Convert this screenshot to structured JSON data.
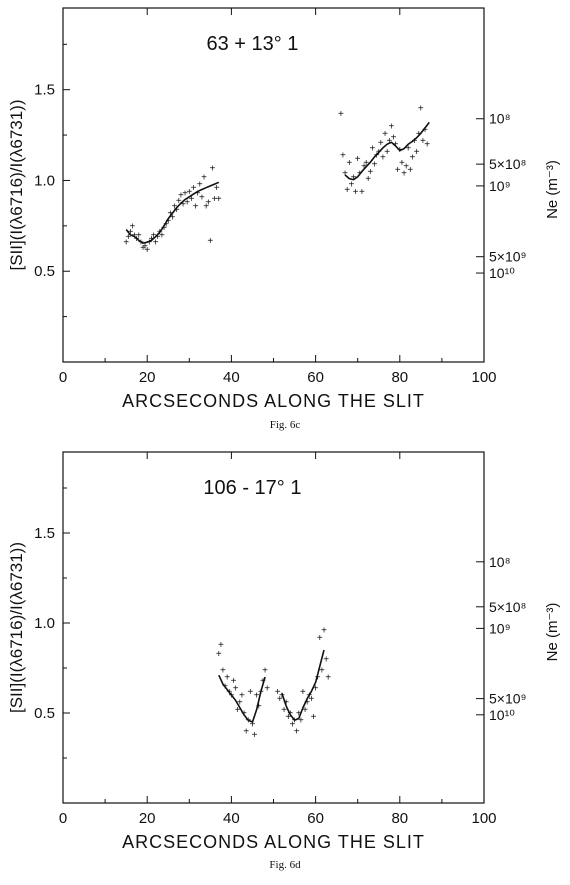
{
  "chart_data": [
    {
      "type": "scatter",
      "title": "63 + 13° 1",
      "caption": "Fig. 6c",
      "xlabel": "ARCSECONDS ALONG THE SLIT",
      "ylabel": "[SII](I(λ6716)/I(λ6731))",
      "y2label": "Ne (m⁻³)",
      "xlim": [
        0,
        100
      ],
      "ylim": [
        0,
        1.95
      ],
      "xticks": [
        "0",
        "20",
        "40",
        "60",
        "80",
        "100"
      ],
      "yticks": [
        "0.5",
        "1.0",
        "1.5"
      ],
      "y2ticks": [
        {
          "label": "10⁸",
          "y": 1.34
        },
        {
          "label": "5×10⁸",
          "y": 1.09
        },
        {
          "label": "10⁹",
          "y": 0.97
        },
        {
          "label": "5×10⁹",
          "y": 0.58
        },
        {
          "label": "10¹⁰",
          "y": 0.49
        }
      ],
      "grid": false,
      "series": [
        {
          "marker": "+",
          "points": [
            [
              15,
              0.66
            ],
            [
              15.5,
              0.69
            ],
            [
              16,
              0.72
            ],
            [
              16.5,
              0.75
            ],
            [
              17,
              0.7
            ],
            [
              17.5,
              0.68
            ],
            [
              18,
              0.7
            ],
            [
              18.5,
              0.66
            ],
            [
              19,
              0.63
            ],
            [
              19.5,
              0.64
            ],
            [
              20,
              0.62
            ],
            [
              20.5,
              0.66
            ],
            [
              21,
              0.68
            ],
            [
              21.5,
              0.7
            ],
            [
              22,
              0.66
            ],
            [
              22.5,
              0.69
            ],
            [
              23,
              0.72
            ],
            [
              23.5,
              0.7
            ],
            [
              24,
              0.74
            ],
            [
              24.5,
              0.76
            ],
            [
              25,
              0.78
            ],
            [
              25.5,
              0.82
            ],
            [
              26,
              0.8
            ],
            [
              26.5,
              0.86
            ],
            [
              27,
              0.84
            ],
            [
              27.5,
              0.89
            ],
            [
              28,
              0.92
            ],
            [
              28.5,
              0.87
            ],
            [
              29,
              0.93
            ],
            [
              29.5,
              0.88
            ],
            [
              30,
              0.94
            ],
            [
              30.5,
              0.9
            ],
            [
              31,
              0.96
            ],
            [
              31.5,
              0.86
            ],
            [
              32,
              0.93
            ],
            [
              32.5,
              0.98
            ],
            [
              33,
              0.91
            ],
            [
              33.5,
              1.02
            ],
            [
              34,
              0.86
            ],
            [
              34.5,
              0.88
            ],
            [
              35,
              0.67
            ],
            [
              35.5,
              1.07
            ],
            [
              36,
              0.9
            ],
            [
              36.5,
              0.96
            ],
            [
              37,
              0.9
            ],
            [
              66,
              1.37
            ],
            [
              66.5,
              1.14
            ],
            [
              67,
              1.04
            ],
            [
              67.5,
              0.95
            ],
            [
              68,
              1.1
            ],
            [
              68.5,
              0.98
            ],
            [
              69,
              1.02
            ],
            [
              69.5,
              0.94
            ],
            [
              70,
              1.12
            ],
            [
              70.5,
              1.04
            ],
            [
              71,
              0.94
            ],
            [
              71.5,
              1.08
            ],
            [
              72,
              1.1
            ],
            [
              72.5,
              1.01
            ],
            [
              73,
              1.05
            ],
            [
              73.5,
              1.18
            ],
            [
              74,
              1.09
            ],
            [
              74.5,
              1.14
            ],
            [
              75,
              1.16
            ],
            [
              75.5,
              1.21
            ],
            [
              76,
              1.13
            ],
            [
              76.5,
              1.26
            ],
            [
              77,
              1.16
            ],
            [
              77.5,
              1.22
            ],
            [
              78,
              1.3
            ],
            [
              78.5,
              1.24
            ],
            [
              79,
              1.2
            ],
            [
              79.5,
              1.06
            ],
            [
              80,
              1.17
            ],
            [
              80.5,
              1.1
            ],
            [
              81,
              1.04
            ],
            [
              81.5,
              1.08
            ],
            [
              82,
              1.18
            ],
            [
              82.5,
              1.06
            ],
            [
              83,
              1.13
            ],
            [
              83.5,
              1.22
            ],
            [
              84,
              1.16
            ],
            [
              84.5,
              1.26
            ],
            [
              85,
              1.4
            ],
            [
              85.5,
              1.22
            ],
            [
              86,
              1.28
            ],
            [
              86.5,
              1.2
            ]
          ]
        },
        {
          "type": "line",
          "segments": [
            [
              [
                15,
                0.73
              ],
              [
                16,
                0.7
              ],
              [
                17,
                0.69
              ],
              [
                18,
                0.67
              ],
              [
                19,
                0.655
              ],
              [
                20,
                0.66
              ],
              [
                21,
                0.67
              ],
              [
                22,
                0.69
              ],
              [
                23,
                0.715
              ],
              [
                24,
                0.75
              ],
              [
                25,
                0.79
              ],
              [
                26,
                0.82
              ],
              [
                27,
                0.85
              ],
              [
                28,
                0.875
              ],
              [
                29,
                0.895
              ],
              [
                30,
                0.91
              ],
              [
                31,
                0.925
              ],
              [
                32,
                0.94
              ],
              [
                33,
                0.95
              ],
              [
                34,
                0.96
              ],
              [
                35,
                0.97
              ],
              [
                36,
                0.98
              ],
              [
                37,
                0.99
              ]
            ],
            [
              [
                67,
                1.03
              ],
              [
                68,
                1.01
              ],
              [
                69,
                1.005
              ],
              [
                70,
                1.02
              ],
              [
                71,
                1.05
              ],
              [
                72,
                1.075
              ],
              [
                73,
                1.1
              ],
              [
                74,
                1.13
              ],
              [
                75,
                1.155
              ],
              [
                76,
                1.18
              ],
              [
                77,
                1.2
              ],
              [
                78,
                1.21
              ],
              [
                79,
                1.19
              ],
              [
                80,
                1.165
              ],
              [
                81,
                1.175
              ],
              [
                82,
                1.2
              ],
              [
                83,
                1.215
              ],
              [
                84,
                1.235
              ],
              [
                85,
                1.26
              ],
              [
                86,
                1.29
              ],
              [
                87,
                1.32
              ]
            ]
          ]
        }
      ]
    },
    {
      "type": "scatter",
      "title": "106 - 17° 1",
      "caption": "Fig. 6d",
      "xlabel": "ARCSECONDS ALONG THE SLIT",
      "ylabel": "[SII](I(λ6716)/I(λ6731))",
      "y2label": "Ne (m⁻³)",
      "xlim": [
        0,
        100
      ],
      "ylim": [
        0,
        1.95
      ],
      "xticks": [
        "0",
        "20",
        "40",
        "60",
        "80",
        "100"
      ],
      "yticks": [
        "0.5",
        "1.0",
        "1.5"
      ],
      "y2ticks": [
        {
          "label": "10⁸",
          "y": 1.34
        },
        {
          "label": "5×10⁸",
          "y": 1.09
        },
        {
          "label": "10⁹",
          "y": 0.97
        },
        {
          "label": "5×10⁹",
          "y": 0.58
        },
        {
          "label": "10¹⁰",
          "y": 0.49
        }
      ],
      "grid": false,
      "series": [
        {
          "marker": "+",
          "points": [
            [
              37,
              0.83
            ],
            [
              37.5,
              0.88
            ],
            [
              38,
              0.74
            ],
            [
              38.5,
              0.65
            ],
            [
              39,
              0.7
            ],
            [
              39.5,
              0.62
            ],
            [
              40,
              0.6
            ],
            [
              40.5,
              0.68
            ],
            [
              41,
              0.64
            ],
            [
              41.5,
              0.52
            ],
            [
              42,
              0.56
            ],
            [
              42.5,
              0.6
            ],
            [
              43,
              0.5
            ],
            [
              43.5,
              0.4
            ],
            [
              44,
              0.46
            ],
            [
              44.5,
              0.62
            ],
            [
              45,
              0.44
            ],
            [
              45.5,
              0.38
            ],
            [
              46,
              0.6
            ],
            [
              46.5,
              0.54
            ],
            [
              47,
              0.62
            ],
            [
              47.5,
              0.68
            ],
            [
              48,
              0.74
            ],
            [
              48.5,
              0.64
            ],
            [
              51,
              0.62
            ],
            [
              51.5,
              0.58
            ],
            [
              52,
              0.6
            ],
            [
              52.5,
              0.52
            ],
            [
              53,
              0.56
            ],
            [
              53.5,
              0.48
            ],
            [
              54,
              0.5
            ],
            [
              54.5,
              0.44
            ],
            [
              55,
              0.46
            ],
            [
              55.5,
              0.4
            ],
            [
              56,
              0.5
            ],
            [
              56.5,
              0.46
            ],
            [
              57,
              0.62
            ],
            [
              57.5,
              0.52
            ],
            [
              58,
              0.56
            ],
            [
              58.5,
              0.6
            ],
            [
              59,
              0.58
            ],
            [
              59.5,
              0.48
            ],
            [
              60,
              0.64
            ],
            [
              60.5,
              0.7
            ],
            [
              61,
              0.92
            ],
            [
              61.5,
              0.74
            ],
            [
              62,
              0.96
            ],
            [
              62.5,
              0.8
            ],
            [
              63,
              0.7
            ]
          ]
        },
        {
          "type": "line",
          "segments": [
            [
              [
                37,
                0.71
              ],
              [
                38,
                0.66
              ],
              [
                39,
                0.63
              ],
              [
                40,
                0.6
              ],
              [
                41,
                0.57
              ],
              [
                42,
                0.53
              ],
              [
                43,
                0.49
              ],
              [
                44,
                0.46
              ],
              [
                45,
                0.45
              ],
              [
                46,
                0.52
              ],
              [
                47,
                0.62
              ],
              [
                48,
                0.7
              ]
            ],
            [
              [
                52,
                0.61
              ],
              [
                53,
                0.54
              ],
              [
                54,
                0.49
              ],
              [
                55,
                0.46
              ],
              [
                56,
                0.47
              ],
              [
                57,
                0.53
              ],
              [
                58,
                0.58
              ],
              [
                59,
                0.62
              ],
              [
                60,
                0.67
              ],
              [
                61,
                0.76
              ],
              [
                62,
                0.85
              ]
            ]
          ]
        }
      ]
    }
  ]
}
